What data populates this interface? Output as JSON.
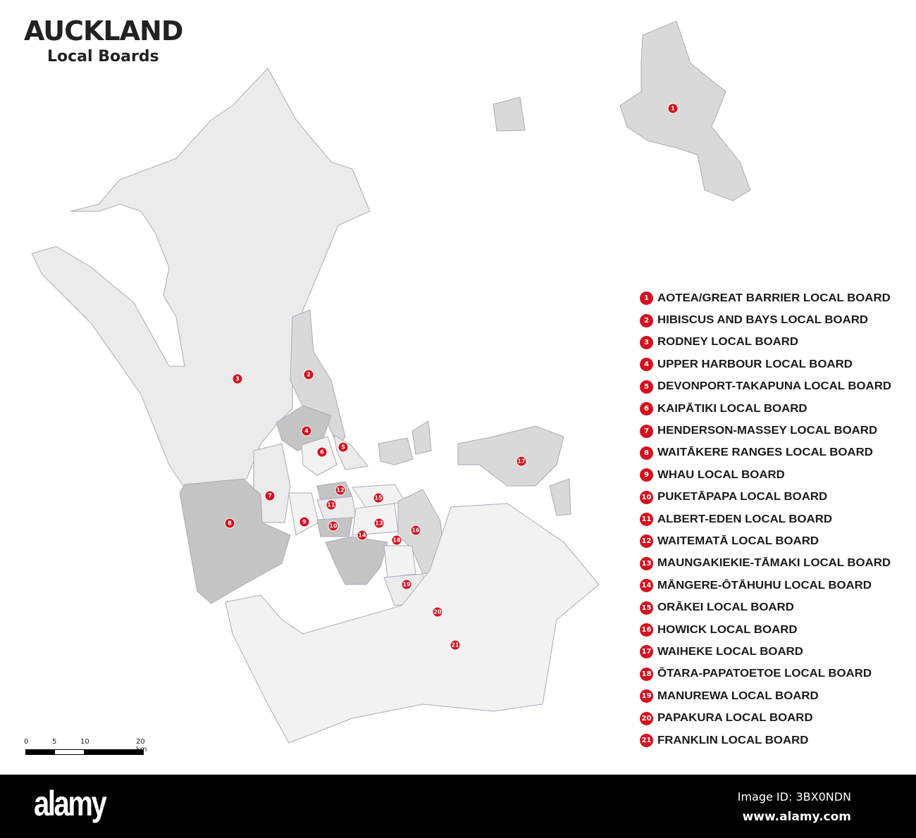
{
  "header": {
    "title": "AUCKLAND",
    "subtitle": "Local Boards"
  },
  "colors": {
    "marker": "#d6101e",
    "land_light": "#ebebeb",
    "land_mid": "#d9d9d9",
    "land_dark": "#c4c4c4",
    "footer": "#000000"
  },
  "legend": [
    {
      "n": "1",
      "label": "AOTEA/GREAT BARRIER LOCAL BOARD"
    },
    {
      "n": "2",
      "label": "HIBISCUS AND BAYS LOCAL BOARD"
    },
    {
      "n": "3",
      "label": "RODNEY LOCAL BOARD"
    },
    {
      "n": "4",
      "label": "UPPER HARBOUR LOCAL BOARD"
    },
    {
      "n": "5",
      "label": "DEVONPORT-TAKAPUNA LOCAL BOARD"
    },
    {
      "n": "6",
      "label": "KAIPĀTIKI LOCAL BOARD"
    },
    {
      "n": "7",
      "label": "HENDERSON-MASSEY LOCAL BOARD"
    },
    {
      "n": "8",
      "label": "WAITĀKERE RANGES LOCAL BOARD"
    },
    {
      "n": "9",
      "label": "WHAU LOCAL BOARD"
    },
    {
      "n": "10",
      "label": "PUKETĀPAPA LOCAL BOARD"
    },
    {
      "n": "11",
      "label": "ALBERT-EDEN LOCAL BOARD"
    },
    {
      "n": "12",
      "label": "WAITEMATĀ LOCAL BOARD"
    },
    {
      "n": "13",
      "label": "MAUNGAKIEKIE-TĀMAKI LOCAL BOARD"
    },
    {
      "n": "14",
      "label": "MĀNGERE-ŌTĀHUHU LOCAL BOARD"
    },
    {
      "n": "15",
      "label": "ORĀKEI LOCAL BOARD"
    },
    {
      "n": "16",
      "label": "HOWICK LOCAL BOARD"
    },
    {
      "n": "17",
      "label": "WAIHEKE LOCAL BOARD"
    },
    {
      "n": "18",
      "label": "ŌTARA-PAPATOETOE LOCAL BOARD"
    },
    {
      "n": "19",
      "label": "MANUREWA LOCAL BOARD"
    },
    {
      "n": "20",
      "label": "PAPAKURA LOCAL BOARD"
    },
    {
      "n": "21",
      "label": "FRANKLIN LOCAL BOARD"
    }
  ],
  "scale": {
    "ticks": [
      "0",
      "5",
      "10",
      "20 km"
    ]
  },
  "footer": {
    "logo": "alamy",
    "image_id": "Image ID: 3BX0NDN",
    "site": "www.alamy.com"
  }
}
